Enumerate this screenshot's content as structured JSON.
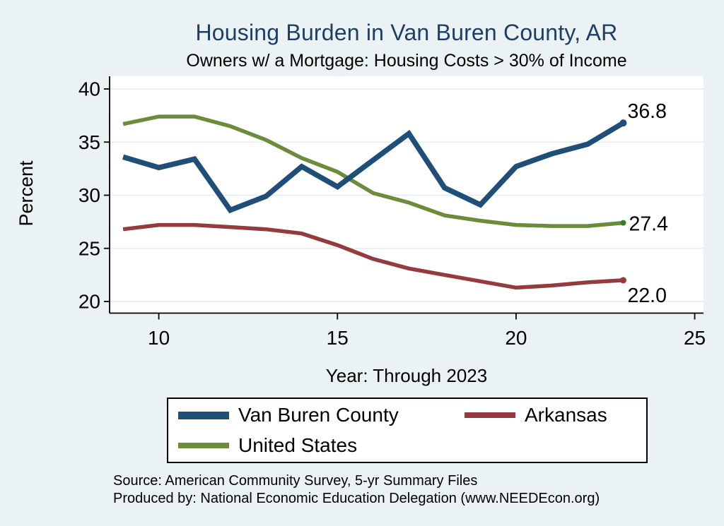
{
  "title": "Housing Burden in Van Buren County, AR",
  "subtitle": "Owners w/ a Mortgage: Housing Costs > 30% of Income",
  "colors": {
    "figure_background": "#EAF2F3",
    "plot_background": "#FFFFFF",
    "gridline": "#E2ECF2",
    "axis": "#000000",
    "title_text": "#1F3E67",
    "navy": "#1F4E79",
    "maroon": "#943B40",
    "olive": "#6B8C3A"
  },
  "axes": {
    "ylabel": "Percent",
    "xlabel": "Year: Through 2023",
    "y_ticks": [
      40,
      35,
      30,
      25,
      20
    ],
    "x_ticks": [
      {
        "year": 2010,
        "label": "10"
      },
      {
        "year": 2015,
        "label": "15"
      },
      {
        "year": 2020,
        "label": "20"
      },
      {
        "year": 2025,
        "label": "25"
      }
    ]
  },
  "chart_data": {
    "type": "line",
    "title": "Housing Burden in Van Buren County, AR",
    "subtitle": "Owners w/ a Mortgage: Housing Costs > 30% of Income",
    "xlabel": "Year: Through 2023",
    "ylabel": "Percent",
    "grid": true,
    "legend_position": "bottom",
    "xlim": [
      2008.6,
      2025.3
    ],
    "ylim": [
      19.0,
      41.2
    ],
    "x_years": [
      2009,
      2010,
      2011,
      2012,
      2013,
      2014,
      2015,
      2016,
      2017,
      2018,
      2019,
      2020,
      2021,
      2022,
      2023
    ],
    "series": [
      {
        "name": "Arkansas",
        "color": "#943B40",
        "line_width": 5.5,
        "values": [
          26.8,
          27.2,
          27.2,
          27.0,
          26.8,
          26.4,
          25.3,
          24.0,
          23.1,
          22.5,
          21.9,
          21.3,
          21.5,
          21.8,
          22.0
        ],
        "end_label": "22.0",
        "end_label_dx": 6,
        "end_label_dy": 22,
        "marker_radius": 4.5
      },
      {
        "name": "United States",
        "color": "#6B8C3A",
        "marker_color": "#3A7D28",
        "line_width": 5.5,
        "values": [
          36.7,
          37.4,
          37.4,
          36.5,
          35.2,
          33.5,
          32.2,
          30.2,
          29.3,
          28.1,
          27.6,
          27.2,
          27.1,
          27.1,
          27.4
        ],
        "end_label": "27.4",
        "end_label_dx": 8,
        "end_label_dy": 2,
        "marker_radius": 4
      },
      {
        "name": "Van Buren County",
        "color": "#1F4E79",
        "line_width": 7.5,
        "values": [
          33.6,
          32.6,
          33.4,
          28.6,
          29.9,
          32.7,
          30.8,
          33.3,
          35.8,
          30.7,
          29.1,
          32.7,
          33.9,
          34.8,
          36.8
        ],
        "end_label": "36.8",
        "end_label_dx": 6,
        "end_label_dy": -16,
        "marker_radius": 5
      }
    ]
  },
  "legend": {
    "items": [
      {
        "label": "Van Buren County",
        "color": "#1F4E79",
        "swatch_height": 11
      },
      {
        "label": "Arkansas",
        "color": "#943B40",
        "swatch_height": 8
      },
      {
        "label": "United States",
        "color": "#6B8C3A",
        "swatch_height": 8
      }
    ]
  },
  "footer": {
    "source_line": "Source: American Community Survey, 5-yr Summary Files",
    "produced_line": "Produced by: National Economic Education Delegation (www.NEEDEcon.org)"
  }
}
